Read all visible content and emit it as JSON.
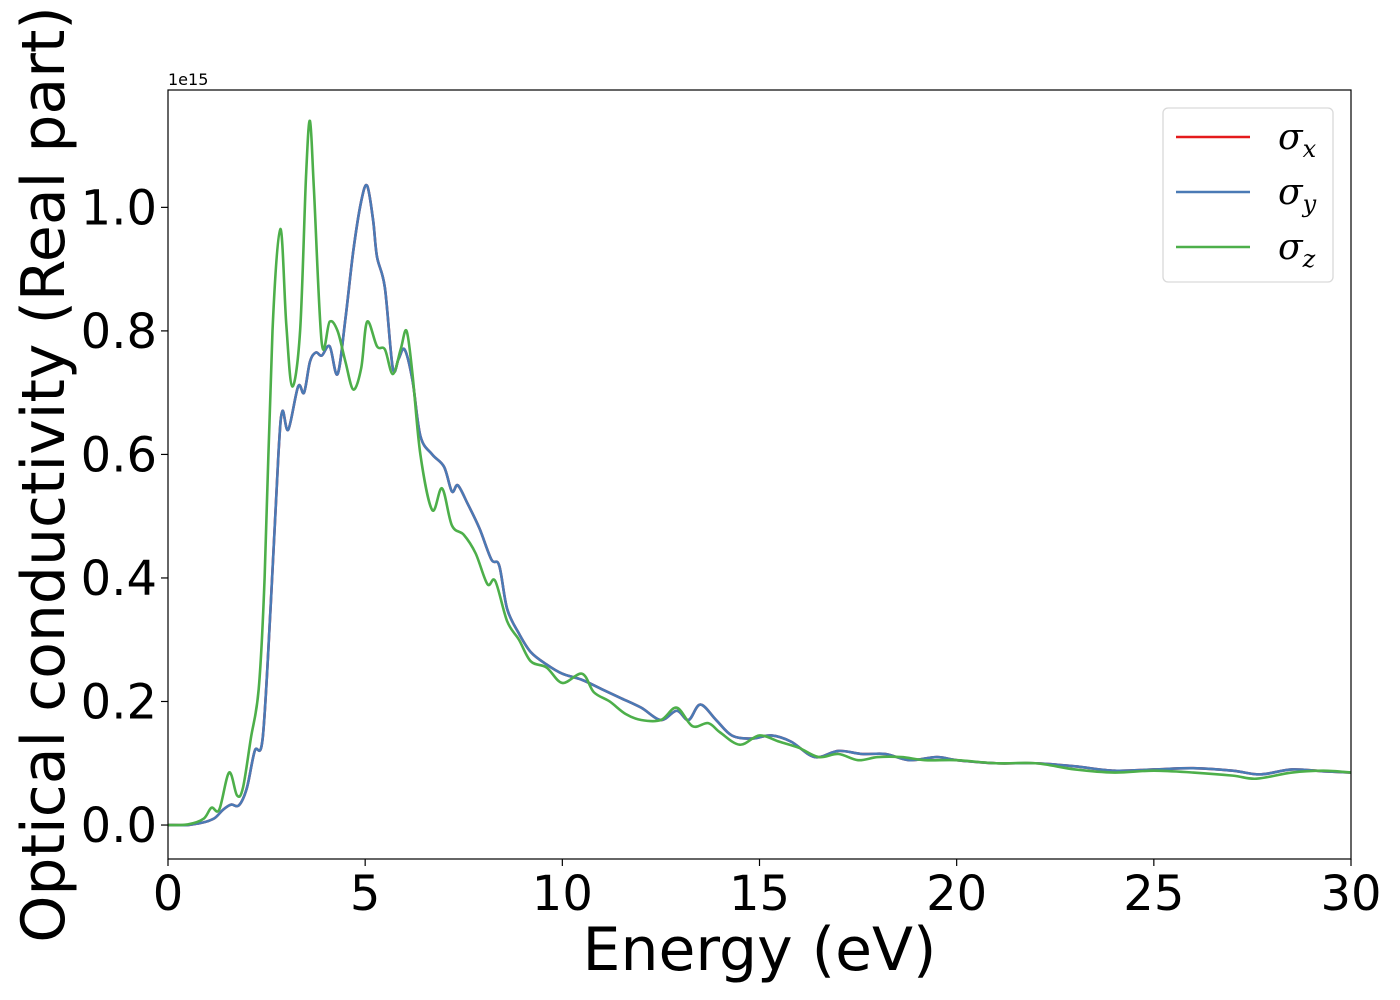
{
  "chart_data": {
    "type": "line",
    "xlabel": "Energy (eV)",
    "ylabel": "Optical conductivity (Real part)",
    "y_offset_label": "1e15",
    "xlim": [
      0,
      30
    ],
    "ylim": [
      -0.055,
      1.19
    ],
    "xticks": [
      0,
      5,
      10,
      15,
      20,
      25,
      30
    ],
    "xtick_labels": [
      "0",
      "5",
      "10",
      "15",
      "20",
      "25",
      "30"
    ],
    "yticks": [
      0.0,
      0.2,
      0.4,
      0.6,
      0.8,
      1.0
    ],
    "ytick_labels": [
      "0.0",
      "0.2",
      "0.4",
      "0.6",
      "0.8",
      "1.0"
    ],
    "grid": false,
    "legend_position": "top-right",
    "series": [
      {
        "name": "σx",
        "symbol": "σ",
        "subscript": "x",
        "color": "#e41a1c",
        "points": [
          [
            0,
            0
          ],
          [
            0.5,
            0.0
          ],
          [
            0.8,
            0.003
          ],
          [
            1.0,
            0.006
          ],
          [
            1.2,
            0.012
          ],
          [
            1.4,
            0.025
          ],
          [
            1.6,
            0.033
          ],
          [
            1.8,
            0.032
          ],
          [
            2.0,
            0.06
          ],
          [
            2.2,
            0.12
          ],
          [
            2.4,
            0.14
          ],
          [
            2.6,
            0.35
          ],
          [
            2.8,
            0.6
          ],
          [
            2.9,
            0.67
          ],
          [
            3.05,
            0.64
          ],
          [
            3.3,
            0.71
          ],
          [
            3.45,
            0.7
          ],
          [
            3.6,
            0.75
          ],
          [
            3.75,
            0.765
          ],
          [
            3.9,
            0.76
          ],
          [
            4.1,
            0.775
          ],
          [
            4.3,
            0.73
          ],
          [
            4.5,
            0.82
          ],
          [
            4.7,
            0.93
          ],
          [
            4.9,
            1.01
          ],
          [
            5.05,
            1.035
          ],
          [
            5.2,
            0.98
          ],
          [
            5.3,
            0.92
          ],
          [
            5.5,
            0.87
          ],
          [
            5.7,
            0.74
          ],
          [
            5.85,
            0.755
          ],
          [
            6.0,
            0.77
          ],
          [
            6.2,
            0.72
          ],
          [
            6.4,
            0.63
          ],
          [
            6.7,
            0.6
          ],
          [
            7.0,
            0.58
          ],
          [
            7.2,
            0.54
          ],
          [
            7.35,
            0.55
          ],
          [
            7.6,
            0.52
          ],
          [
            7.9,
            0.48
          ],
          [
            8.2,
            0.43
          ],
          [
            8.4,
            0.42
          ],
          [
            8.6,
            0.35
          ],
          [
            8.9,
            0.31
          ],
          [
            9.2,
            0.28
          ],
          [
            9.6,
            0.26
          ],
          [
            10.0,
            0.245
          ],
          [
            10.5,
            0.235
          ],
          [
            11.0,
            0.22
          ],
          [
            11.5,
            0.205
          ],
          [
            12.0,
            0.19
          ],
          [
            12.5,
            0.17
          ],
          [
            12.9,
            0.185
          ],
          [
            13.2,
            0.17
          ],
          [
            13.5,
            0.195
          ],
          [
            13.9,
            0.17
          ],
          [
            14.3,
            0.145
          ],
          [
            14.8,
            0.14
          ],
          [
            15.3,
            0.145
          ],
          [
            15.8,
            0.135
          ],
          [
            16.4,
            0.11
          ],
          [
            17.0,
            0.12
          ],
          [
            17.6,
            0.115
          ],
          [
            18.2,
            0.115
          ],
          [
            18.8,
            0.105
          ],
          [
            19.5,
            0.11
          ],
          [
            20.0,
            0.105
          ],
          [
            21.0,
            0.1
          ],
          [
            22.0,
            0.1
          ],
          [
            23.0,
            0.095
          ],
          [
            24.0,
            0.088
          ],
          [
            25.0,
            0.09
          ],
          [
            26.0,
            0.092
          ],
          [
            27.0,
            0.088
          ],
          [
            27.7,
            0.082
          ],
          [
            28.5,
            0.09
          ],
          [
            29.3,
            0.087
          ],
          [
            30.0,
            0.085
          ]
        ]
      },
      {
        "name": "σy",
        "symbol": "σ",
        "subscript": "y",
        "color": "#4a7ab5",
        "points": [
          [
            0,
            0
          ],
          [
            0.5,
            0.0
          ],
          [
            0.8,
            0.003
          ],
          [
            1.0,
            0.006
          ],
          [
            1.2,
            0.012
          ],
          [
            1.4,
            0.025
          ],
          [
            1.6,
            0.033
          ],
          [
            1.8,
            0.032
          ],
          [
            2.0,
            0.06
          ],
          [
            2.2,
            0.12
          ],
          [
            2.4,
            0.14
          ],
          [
            2.6,
            0.35
          ],
          [
            2.8,
            0.6
          ],
          [
            2.9,
            0.67
          ],
          [
            3.05,
            0.64
          ],
          [
            3.3,
            0.71
          ],
          [
            3.45,
            0.7
          ],
          [
            3.6,
            0.75
          ],
          [
            3.75,
            0.765
          ],
          [
            3.9,
            0.76
          ],
          [
            4.1,
            0.775
          ],
          [
            4.3,
            0.73
          ],
          [
            4.5,
            0.82
          ],
          [
            4.7,
            0.93
          ],
          [
            4.9,
            1.01
          ],
          [
            5.05,
            1.035
          ],
          [
            5.2,
            0.98
          ],
          [
            5.3,
            0.92
          ],
          [
            5.5,
            0.87
          ],
          [
            5.7,
            0.74
          ],
          [
            5.85,
            0.755
          ],
          [
            6.0,
            0.77
          ],
          [
            6.2,
            0.72
          ],
          [
            6.4,
            0.63
          ],
          [
            6.7,
            0.6
          ],
          [
            7.0,
            0.58
          ],
          [
            7.2,
            0.54
          ],
          [
            7.35,
            0.55
          ],
          [
            7.6,
            0.52
          ],
          [
            7.9,
            0.48
          ],
          [
            8.2,
            0.43
          ],
          [
            8.4,
            0.42
          ],
          [
            8.6,
            0.35
          ],
          [
            8.9,
            0.31
          ],
          [
            9.2,
            0.28
          ],
          [
            9.6,
            0.26
          ],
          [
            10.0,
            0.245
          ],
          [
            10.5,
            0.235
          ],
          [
            11.0,
            0.22
          ],
          [
            11.5,
            0.205
          ],
          [
            12.0,
            0.19
          ],
          [
            12.5,
            0.17
          ],
          [
            12.9,
            0.185
          ],
          [
            13.2,
            0.17
          ],
          [
            13.5,
            0.195
          ],
          [
            13.9,
            0.17
          ],
          [
            14.3,
            0.145
          ],
          [
            14.8,
            0.14
          ],
          [
            15.3,
            0.145
          ],
          [
            15.8,
            0.135
          ],
          [
            16.4,
            0.11
          ],
          [
            17.0,
            0.12
          ],
          [
            17.6,
            0.115
          ],
          [
            18.2,
            0.115
          ],
          [
            18.8,
            0.105
          ],
          [
            19.5,
            0.11
          ],
          [
            20.0,
            0.105
          ],
          [
            21.0,
            0.1
          ],
          [
            22.0,
            0.1
          ],
          [
            23.0,
            0.095
          ],
          [
            24.0,
            0.088
          ],
          [
            25.0,
            0.09
          ],
          [
            26.0,
            0.092
          ],
          [
            27.0,
            0.088
          ],
          [
            27.7,
            0.082
          ],
          [
            28.5,
            0.09
          ],
          [
            29.3,
            0.087
          ],
          [
            30.0,
            0.085
          ]
        ]
      },
      {
        "name": "σz",
        "symbol": "σ",
        "subscript": "z",
        "color": "#4daf4a",
        "points": [
          [
            0,
            0
          ],
          [
            0.5,
            0.001
          ],
          [
            0.9,
            0.01
          ],
          [
            1.1,
            0.028
          ],
          [
            1.3,
            0.025
          ],
          [
            1.55,
            0.085
          ],
          [
            1.75,
            0.048
          ],
          [
            1.9,
            0.06
          ],
          [
            2.1,
            0.14
          ],
          [
            2.3,
            0.22
          ],
          [
            2.45,
            0.4
          ],
          [
            2.65,
            0.8
          ],
          [
            2.85,
            0.965
          ],
          [
            3.0,
            0.81
          ],
          [
            3.15,
            0.71
          ],
          [
            3.35,
            0.8
          ],
          [
            3.5,
            1.05
          ],
          [
            3.6,
            1.14
          ],
          [
            3.7,
            1.03
          ],
          [
            3.9,
            0.78
          ],
          [
            4.1,
            0.815
          ],
          [
            4.3,
            0.8
          ],
          [
            4.5,
            0.75
          ],
          [
            4.7,
            0.705
          ],
          [
            4.9,
            0.74
          ],
          [
            5.05,
            0.815
          ],
          [
            5.3,
            0.775
          ],
          [
            5.5,
            0.77
          ],
          [
            5.7,
            0.73
          ],
          [
            5.9,
            0.77
          ],
          [
            6.05,
            0.8
          ],
          [
            6.2,
            0.73
          ],
          [
            6.4,
            0.6
          ],
          [
            6.7,
            0.51
          ],
          [
            6.95,
            0.545
          ],
          [
            7.2,
            0.485
          ],
          [
            7.5,
            0.47
          ],
          [
            7.8,
            0.44
          ],
          [
            8.1,
            0.39
          ],
          [
            8.3,
            0.395
          ],
          [
            8.6,
            0.33
          ],
          [
            8.9,
            0.3
          ],
          [
            9.2,
            0.265
          ],
          [
            9.6,
            0.255
          ],
          [
            10.0,
            0.23
          ],
          [
            10.5,
            0.245
          ],
          [
            10.8,
            0.215
          ],
          [
            11.2,
            0.2
          ],
          [
            11.6,
            0.18
          ],
          [
            12.0,
            0.17
          ],
          [
            12.5,
            0.17
          ],
          [
            12.9,
            0.19
          ],
          [
            13.3,
            0.16
          ],
          [
            13.7,
            0.165
          ],
          [
            14.0,
            0.15
          ],
          [
            14.5,
            0.13
          ],
          [
            15.0,
            0.145
          ],
          [
            15.5,
            0.135
          ],
          [
            16.0,
            0.125
          ],
          [
            16.5,
            0.11
          ],
          [
            17.0,
            0.115
          ],
          [
            17.5,
            0.105
          ],
          [
            18.0,
            0.11
          ],
          [
            18.6,
            0.11
          ],
          [
            19.2,
            0.105
          ],
          [
            20.0,
            0.105
          ],
          [
            21.0,
            0.1
          ],
          [
            22.0,
            0.1
          ],
          [
            23.0,
            0.09
          ],
          [
            24.0,
            0.085
          ],
          [
            25.0,
            0.088
          ],
          [
            26.0,
            0.085
          ],
          [
            27.0,
            0.08
          ],
          [
            27.6,
            0.075
          ],
          [
            28.5,
            0.085
          ],
          [
            29.3,
            0.088
          ],
          [
            30.0,
            0.085
          ]
        ]
      }
    ]
  }
}
